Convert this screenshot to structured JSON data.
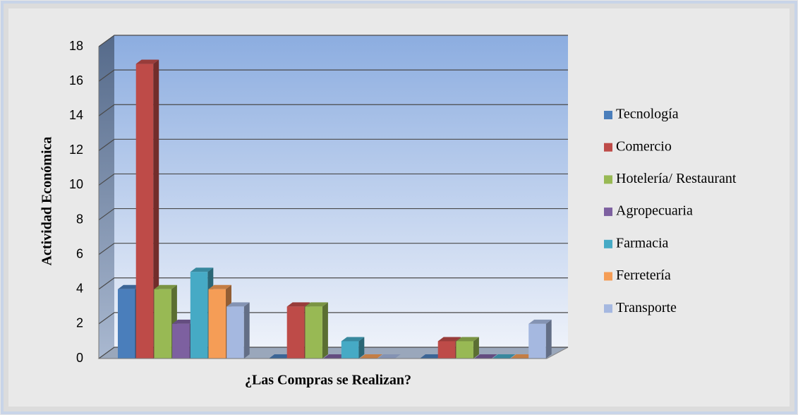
{
  "chart_data": {
    "type": "bar3d",
    "x_label": "¿Las Compras se Realizan?",
    "y_label": "Actividad Económica",
    "categories": [
      null,
      null,
      null
    ],
    "series": [
      {
        "name": "Tecnología",
        "color": "#4a7ebb",
        "values": [
          4,
          0,
          0
        ]
      },
      {
        "name": "Comercio",
        "color": "#be4b48",
        "values": [
          17,
          3,
          1
        ]
      },
      {
        "name": "Hotelería/ Restaurant",
        "color": "#98b954",
        "values": [
          4,
          3,
          1
        ]
      },
      {
        "name": "Agropecuaria",
        "color": "#7d60a0",
        "values": [
          2,
          0,
          0
        ]
      },
      {
        "name": "Farmacia",
        "color": "#46aac5",
        "values": [
          5,
          1,
          0
        ]
      },
      {
        "name": "Ferretería",
        "color": "#f59d56",
        "values": [
          4,
          0,
          0
        ]
      },
      {
        "name": "Transporte",
        "color": "#a5b8e0",
        "values": [
          3,
          0,
          2
        ]
      }
    ],
    "ylim": [
      0,
      18
    ],
    "yticks": [
      0,
      2,
      4,
      6,
      8,
      10,
      12,
      14,
      16,
      18
    ],
    "grid": true,
    "legend": "right"
  }
}
